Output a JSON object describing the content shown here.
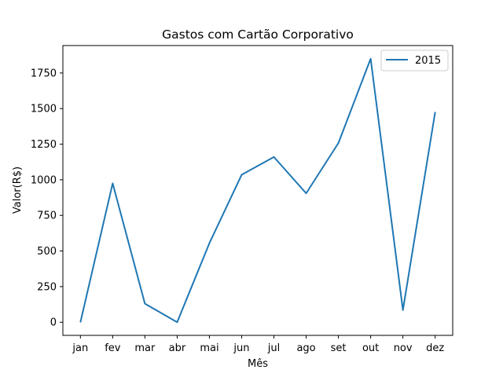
{
  "chart_data": {
    "type": "line",
    "title": "Gastos com Cartão Corporativo",
    "xlabel": "Mês",
    "ylabel": "Valor(R$)",
    "categories": [
      "jan",
      "fev",
      "mar",
      "abr",
      "mai",
      "jun",
      "jul",
      "ago",
      "set",
      "out",
      "nov",
      "dez"
    ],
    "series": [
      {
        "name": "2015",
        "color": "#1f77b4",
        "values": [
          0,
          975,
          130,
          0,
          555,
          1035,
          1160,
          905,
          1258,
          1850,
          85,
          1475
        ]
      }
    ],
    "yticks": [
      0,
      250,
      500,
      750,
      1000,
      1250,
      1500,
      1750
    ],
    "ylim": [
      -92.5,
      1942.5
    ],
    "grid": false,
    "legend_position": "top-right"
  }
}
